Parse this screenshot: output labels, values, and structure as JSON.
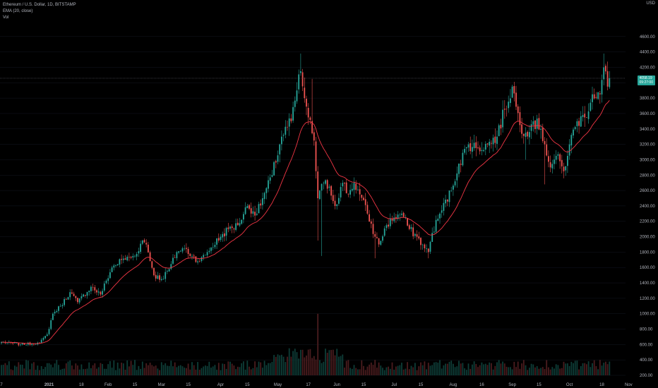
{
  "legend": {
    "symbol": "Ethereum / U.S. Dollar, 1D, BITSTAMP",
    "ema": "EMA (20, close)",
    "volume": "Vol"
  },
  "price_axis": {
    "currency": "USD",
    "last_price": "4058.19",
    "countdown": "09:27:00",
    "tag_color": "#26a69a"
  },
  "colors": {
    "up": "#26a69a",
    "down": "#ef5350",
    "ema": "#f23645",
    "background": "#000000",
    "text": "#b2b5be"
  },
  "chart_data": {
    "type": "candlestick",
    "title": "Ethereum / U.S. Dollar, 1D, BITSTAMP",
    "ylim": [
      200,
      4800
    ],
    "y_ticks": [
      200,
      400,
      600,
      800,
      1000,
      1200,
      1400,
      1600,
      1800,
      2000,
      2200,
      2400,
      2600,
      2800,
      3000,
      3200,
      3400,
      3600,
      3800,
      4000,
      4200,
      4400,
      4600
    ],
    "x_ticks": [
      {
        "label": "7",
        "day": 0
      },
      {
        "label": "2021",
        "day": 25
      },
      {
        "label": "18",
        "day": 42
      },
      {
        "label": "Feb",
        "day": 56
      },
      {
        "label": "15",
        "day": 70
      },
      {
        "label": "Mar",
        "day": 84
      },
      {
        "label": "15",
        "day": 98
      },
      {
        "label": "Apr",
        "day": 115
      },
      {
        "label": "15",
        "day": 129
      },
      {
        "label": "May",
        "day": 145
      },
      {
        "label": "17",
        "day": 161
      },
      {
        "label": "Jun",
        "day": 176
      },
      {
        "label": "15",
        "day": 190
      },
      {
        "label": "Jul",
        "day": 206
      },
      {
        "label": "15",
        "day": 220
      },
      {
        "label": "Aug",
        "day": 237
      },
      {
        "label": "16",
        "day": 252
      },
      {
        "label": "Sep",
        "day": 268
      },
      {
        "label": "15",
        "day": 282
      },
      {
        "label": "Oct",
        "day": 298
      },
      {
        "label": "18",
        "day": 315
      },
      {
        "label": "Nov",
        "day": 329
      }
    ],
    "close_anchors": [
      {
        "day": 0,
        "close": 630
      },
      {
        "day": 10,
        "close": 600
      },
      {
        "day": 20,
        "close": 620
      },
      {
        "day": 24,
        "close": 730
      },
      {
        "day": 27,
        "close": 1000
      },
      {
        "day": 31,
        "close": 1100
      },
      {
        "day": 36,
        "close": 1280
      },
      {
        "day": 40,
        "close": 1150
      },
      {
        "day": 47,
        "close": 1350
      },
      {
        "day": 52,
        "close": 1250
      },
      {
        "day": 58,
        "close": 1600
      },
      {
        "day": 63,
        "close": 1700
      },
      {
        "day": 70,
        "close": 1750
      },
      {
        "day": 74,
        "close": 1950
      },
      {
        "day": 76,
        "close": 1900
      },
      {
        "day": 80,
        "close": 1500
      },
      {
        "day": 84,
        "close": 1450
      },
      {
        "day": 88,
        "close": 1580
      },
      {
        "day": 92,
        "close": 1800
      },
      {
        "day": 96,
        "close": 1850
      },
      {
        "day": 100,
        "close": 1750
      },
      {
        "day": 104,
        "close": 1680
      },
      {
        "day": 108,
        "close": 1800
      },
      {
        "day": 115,
        "close": 2000
      },
      {
        "day": 119,
        "close": 2100
      },
      {
        "day": 124,
        "close": 2150
      },
      {
        "day": 129,
        "close": 2400
      },
      {
        "day": 134,
        "close": 2300
      },
      {
        "day": 137,
        "close": 2500
      },
      {
        "day": 142,
        "close": 2800
      },
      {
        "day": 147,
        "close": 3300
      },
      {
        "day": 152,
        "close": 3500
      },
      {
        "day": 155,
        "close": 3900
      },
      {
        "day": 157,
        "close": 4150
      },
      {
        "day": 159,
        "close": 3800
      },
      {
        "day": 161,
        "close": 3550
      },
      {
        "day": 164,
        "close": 3250
      },
      {
        "day": 166,
        "close": 2500
      },
      {
        "day": 169,
        "close": 2700
      },
      {
        "day": 172,
        "close": 2650
      },
      {
        "day": 175,
        "close": 2400
      },
      {
        "day": 179,
        "close": 2700
      },
      {
        "day": 182,
        "close": 2550
      },
      {
        "day": 185,
        "close": 2700
      },
      {
        "day": 188,
        "close": 2550
      },
      {
        "day": 192,
        "close": 2300
      },
      {
        "day": 196,
        "close": 2000
      },
      {
        "day": 198,
        "close": 1900
      },
      {
        "day": 202,
        "close": 2150
      },
      {
        "day": 206,
        "close": 2250
      },
      {
        "day": 210,
        "close": 2300
      },
      {
        "day": 214,
        "close": 2100
      },
      {
        "day": 218,
        "close": 2000
      },
      {
        "day": 222,
        "close": 1850
      },
      {
        "day": 224,
        "close": 1800
      },
      {
        "day": 226,
        "close": 2050
      },
      {
        "day": 230,
        "close": 2300
      },
      {
        "day": 236,
        "close": 2600
      },
      {
        "day": 240,
        "close": 2950
      },
      {
        "day": 245,
        "close": 3200
      },
      {
        "day": 250,
        "close": 3150
      },
      {
        "day": 255,
        "close": 3200
      },
      {
        "day": 260,
        "close": 3300
      },
      {
        "day": 264,
        "close": 3650
      },
      {
        "day": 268,
        "close": 3950
      },
      {
        "day": 272,
        "close": 3450
      },
      {
        "day": 275,
        "close": 3350
      },
      {
        "day": 279,
        "close": 3500
      },
      {
        "day": 283,
        "close": 3400
      },
      {
        "day": 285,
        "close": 3200
      },
      {
        "day": 288,
        "close": 2900
      },
      {
        "day": 291,
        "close": 3050
      },
      {
        "day": 295,
        "close": 2850
      },
      {
        "day": 298,
        "close": 3200
      },
      {
        "day": 302,
        "close": 3500
      },
      {
        "day": 306,
        "close": 3550
      },
      {
        "day": 310,
        "close": 3850
      },
      {
        "day": 314,
        "close": 3850
      },
      {
        "day": 316,
        "close": 4200
      },
      {
        "day": 318,
        "close": 3950
      },
      {
        "day": 319,
        "close": 4058
      }
    ],
    "high_spikes": [
      {
        "day": 157,
        "high": 4380
      },
      {
        "day": 163,
        "high": 4050
      },
      {
        "day": 316,
        "high": 4380
      }
    ],
    "low_spikes": [
      {
        "day": 166,
        "low": 1950
      },
      {
        "day": 168,
        "low": 1750
      },
      {
        "day": 196,
        "low": 1720
      },
      {
        "day": 224,
        "low": 1720
      },
      {
        "day": 275,
        "low": 3000
      },
      {
        "day": 285,
        "low": 2680
      }
    ],
    "volume_ylim": [
      0,
      1100
    ],
    "volume_peak": {
      "day": 166,
      "value": 960
    }
  }
}
